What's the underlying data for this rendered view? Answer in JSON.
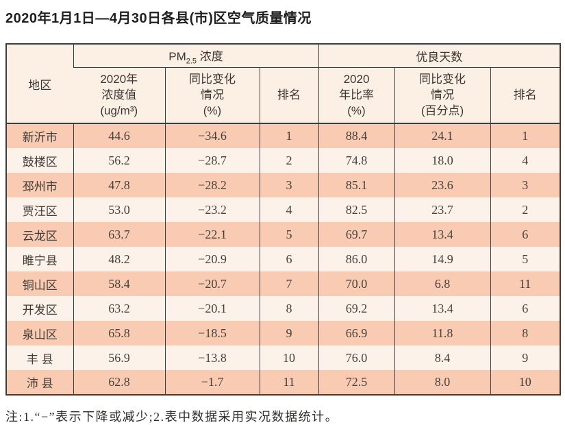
{
  "title": "2020年1月1日—4月30日各县(市)区空气质量情况",
  "table": {
    "header": {
      "region": "地区",
      "pm25_group": {
        "prefix": "PM",
        "sub": "2.5",
        "suffix": " 浓度"
      },
      "good_days_group": "优良天数",
      "sub": {
        "pm25_value": "2020年\n浓度值\n(ug/m³)",
        "pm25_change": "同比变化\n情况\n(%)",
        "pm25_rank": "排名",
        "ratio_value": "2020\n年比率\n(%)",
        "ratio_change": "同比变化\n情况\n(百分点)",
        "ratio_rank": "排名"
      }
    },
    "rows": [
      {
        "region": "新沂市",
        "pm25": "44.6",
        "pm25_change": "−34.6",
        "pm25_rank": "1",
        "ratio": "88.4",
        "ratio_change": "24.1",
        "ratio_rank": "1"
      },
      {
        "region": "鼓楼区",
        "pm25": "56.2",
        "pm25_change": "−28.7",
        "pm25_rank": "2",
        "ratio": "74.8",
        "ratio_change": "18.0",
        "ratio_rank": "4"
      },
      {
        "region": "邳州市",
        "pm25": "47.8",
        "pm25_change": "−28.2",
        "pm25_rank": "3",
        "ratio": "85.1",
        "ratio_change": "23.6",
        "ratio_rank": "3"
      },
      {
        "region": "贾汪区",
        "pm25": "53.0",
        "pm25_change": "−23.2",
        "pm25_rank": "4",
        "ratio": "82.5",
        "ratio_change": "23.7",
        "ratio_rank": "2"
      },
      {
        "region": "云龙区",
        "pm25": "63.7",
        "pm25_change": "−22.1",
        "pm25_rank": "5",
        "ratio": "69.7",
        "ratio_change": "13.4",
        "ratio_rank": "6"
      },
      {
        "region": "睢宁县",
        "pm25": "48.2",
        "pm25_change": "−20.9",
        "pm25_rank": "6",
        "ratio": "86.0",
        "ratio_change": "14.9",
        "ratio_rank": "5"
      },
      {
        "region": "铜山区",
        "pm25": "58.4",
        "pm25_change": "−20.7",
        "pm25_rank": "7",
        "ratio": "70.0",
        "ratio_change": "6.8",
        "ratio_rank": "11"
      },
      {
        "region": "开发区",
        "pm25": "63.2",
        "pm25_change": "−20.1",
        "pm25_rank": "8",
        "ratio": "69.2",
        "ratio_change": "13.4",
        "ratio_rank": "6"
      },
      {
        "region": "泉山区",
        "pm25": "65.8",
        "pm25_change": "−18.5",
        "pm25_rank": "9",
        "ratio": "66.9",
        "ratio_change": "11.8",
        "ratio_rank": "8"
      },
      {
        "region": "丰 县",
        "pm25": "56.9",
        "pm25_change": "−13.8",
        "pm25_rank": "10",
        "ratio": "76.0",
        "ratio_change": "8.4",
        "ratio_rank": "9"
      },
      {
        "region": "沛 县",
        "pm25": "62.8",
        "pm25_change": "−1.7",
        "pm25_rank": "11",
        "ratio": "72.5",
        "ratio_change": "8.0",
        "ratio_rank": "10"
      }
    ]
  },
  "note": "注:1.“−”表示下降或减少;2.表中数据采用实况数据统计。",
  "colors": {
    "row_stripe_salmon": "#f8cbb2",
    "row_stripe_light": "#fdf2ea",
    "header_bg": "#fcefe4",
    "border": "#3c3c3c"
  }
}
